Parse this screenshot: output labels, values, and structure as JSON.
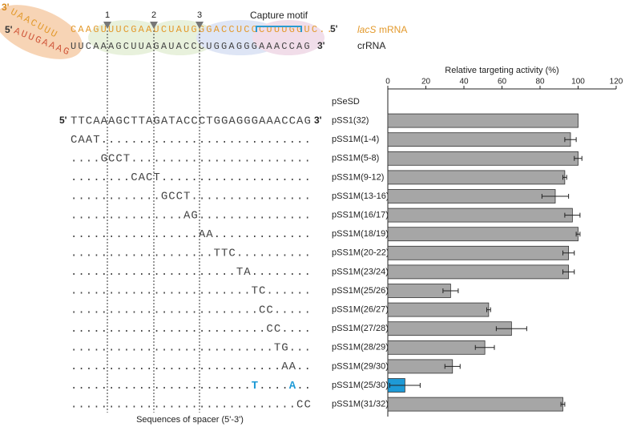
{
  "diagram": {
    "mrna_3prime": "3'",
    "mrna_rotated": "UAACUUU",
    "mrna_seq": "CAAGUUUCGAAUCUAUGGGACCUCCCUUUGGUC..",
    "mrna_5prime": "5'",
    "mrna_label_italic": "lacS",
    "mrna_label": "mRNA",
    "crna_5prime": "5'",
    "crna_rotated": "AUUGAAAG",
    "crna_seq": "UUCAAAGCUUAGAUACCCUGGAGGGAAACCAG",
    "crna_3prime": "3'",
    "crna_label": "crRNA",
    "capture_motif": "Capture motif",
    "markers": [
      "1",
      "2",
      "3"
    ]
  },
  "spacers": {
    "reference_5prime": "5'",
    "reference": "TTCAAAGCTTAGATACCCTGGAGGGAAACCAG",
    "reference_3prime": "3'",
    "rows": [
      "CAAT............................",
      "....GCCT........................",
      "........CACT....................",
      "............GCCT................",
      "...............AG...............",
      ".................AA.............",
      "...................TTC..........",
      "......................TA........",
      "........................TC......",
      ".........................CC.....",
      "..........................CC....",
      "...........................TG...",
      "............................AA..",
      "........................T....A..",
      "..............................CC"
    ],
    "highlight_row": 13,
    "highlight_color": "#1e9ad6",
    "caption": "Sequences of spacer (5'-3')"
  },
  "chart_data": {
    "type": "bar",
    "orientation": "horizontal",
    "xaxis_position": "top",
    "xlabel": "Relative targeting activity (%)",
    "categories": [
      "pSeSD",
      "pSS1(32)",
      "pSS1M(1-4)",
      "pSS1M(5-8)",
      "pSS1M(9-12)",
      "pSS1M(13-16)",
      "pSS1M(16/17)",
      "pSS1M(18/19)",
      "pSS1M(20-22)",
      "pSS1M(23/24)",
      "pSS1M(25/26)",
      "pSS1M(26/27)",
      "pSS1M(27/28)",
      "pSS1M(28/29)",
      "pSS1M(29/30)",
      "pSS1M(25/30)",
      "pSS1M(31/32)"
    ],
    "values": [
      0,
      100,
      96,
      100,
      93,
      88,
      97,
      100,
      95,
      95,
      33,
      53,
      65,
      51,
      34,
      9,
      92
    ],
    "errors": [
      null,
      null,
      3,
      2,
      1,
      7,
      4,
      1,
      3,
      3,
      4,
      1,
      8,
      5,
      4,
      8,
      1
    ],
    "colors": [
      "#a6a6a6",
      "#a6a6a6",
      "#a6a6a6",
      "#a6a6a6",
      "#a6a6a6",
      "#a6a6a6",
      "#a6a6a6",
      "#a6a6a6",
      "#a6a6a6",
      "#a6a6a6",
      "#a6a6a6",
      "#a6a6a6",
      "#a6a6a6",
      "#a6a6a6",
      "#a6a6a6",
      "#1e9ad6",
      "#a6a6a6"
    ],
    "xlim": [
      0,
      120
    ],
    "xticks": [
      0,
      20,
      40,
      60,
      80,
      100,
      120
    ]
  }
}
